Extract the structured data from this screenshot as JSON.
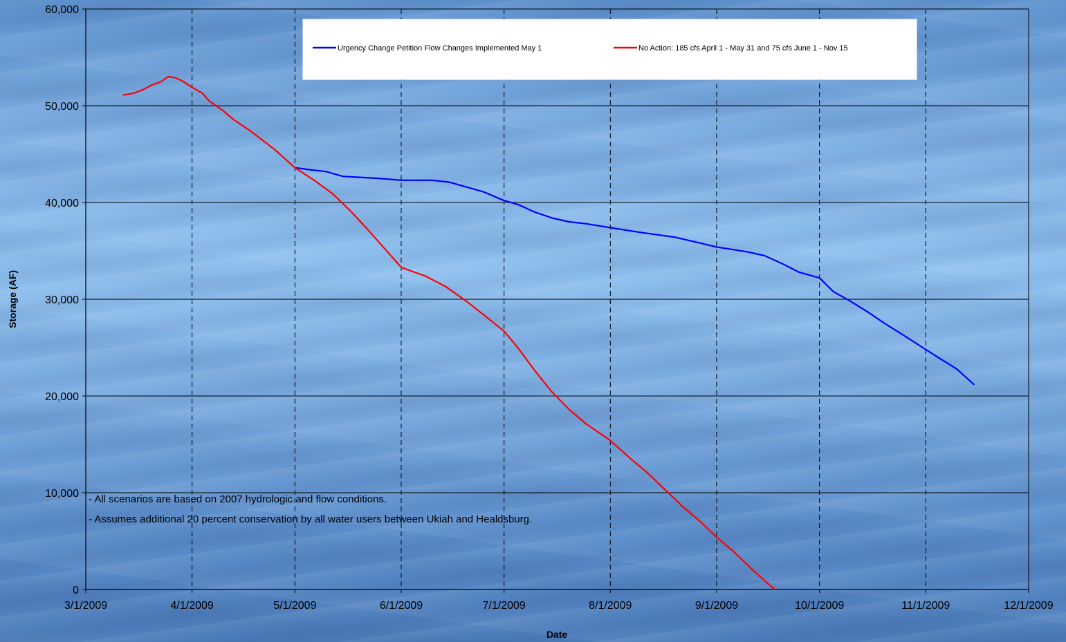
{
  "chart_data": {
    "type": "line",
    "title": "",
    "xlabel": "Date",
    "ylabel": "Storage (AF)",
    "xlim": [
      "2009-03-01",
      "2009-12-01"
    ],
    "ylim": [
      0,
      60000
    ],
    "x_ticks": [
      "3/1/2009",
      "4/1/2009",
      "5/1/2009",
      "6/1/2009",
      "7/1/2009",
      "8/1/2009",
      "9/1/2009",
      "10/1/2009",
      "11/1/2009",
      "12/1/2009"
    ],
    "y_ticks": [
      {
        "value": 0,
        "label": "0"
      },
      {
        "value": 10000,
        "label": "10,000"
      },
      {
        "value": 20000,
        "label": "20,000"
      },
      {
        "value": 30000,
        "label": "30,000"
      },
      {
        "value": 40000,
        "label": "40,000"
      },
      {
        "value": 50000,
        "label": "50,000"
      },
      {
        "value": 60000,
        "label": "60,000"
      }
    ],
    "grid": {
      "horizontal": "solid",
      "vertical": "dashed"
    },
    "legend_position": "top",
    "series": [
      {
        "name": "Urgency Change Petition Flow  Changes Implemented May 1",
        "color": "#0000ff",
        "points": [
          [
            "2009-05-01",
            43600
          ],
          [
            "2009-05-05",
            43400
          ],
          [
            "2009-05-10",
            43200
          ],
          [
            "2009-05-15",
            42700
          ],
          [
            "2009-05-20",
            42600
          ],
          [
            "2009-05-25",
            42500
          ],
          [
            "2009-06-01",
            42300
          ],
          [
            "2009-06-10",
            42300
          ],
          [
            "2009-06-15",
            42100
          ],
          [
            "2009-06-20",
            41600
          ],
          [
            "2009-06-25",
            41100
          ],
          [
            "2009-07-01",
            40200
          ],
          [
            "2009-07-05",
            39800
          ],
          [
            "2009-07-10",
            39000
          ],
          [
            "2009-07-15",
            38400
          ],
          [
            "2009-07-20",
            38000
          ],
          [
            "2009-07-25",
            37800
          ],
          [
            "2009-08-01",
            37400
          ],
          [
            "2009-08-10",
            36900
          ],
          [
            "2009-08-20",
            36400
          ],
          [
            "2009-09-01",
            35400
          ],
          [
            "2009-09-10",
            34900
          ],
          [
            "2009-09-15",
            34500
          ],
          [
            "2009-09-20",
            33700
          ],
          [
            "2009-09-25",
            32800
          ],
          [
            "2009-10-01",
            32200
          ],
          [
            "2009-10-05",
            30800
          ],
          [
            "2009-10-10",
            29800
          ],
          [
            "2009-10-15",
            28700
          ],
          [
            "2009-10-20",
            27500
          ],
          [
            "2009-10-25",
            26400
          ],
          [
            "2009-11-01",
            24800
          ],
          [
            "2009-11-05",
            23900
          ],
          [
            "2009-11-10",
            22800
          ],
          [
            "2009-11-15",
            21200
          ]
        ]
      },
      {
        "name": "No Action: 185 cfs April 1 - May 31 and 75 cfs June 1 - Nov 15",
        "color": "#ff0000",
        "points": [
          [
            "2009-03-12",
            51100
          ],
          [
            "2009-03-15",
            51300
          ],
          [
            "2009-03-18",
            51700
          ],
          [
            "2009-03-20",
            52100
          ],
          [
            "2009-03-23",
            52500
          ],
          [
            "2009-03-25",
            53000
          ],
          [
            "2009-03-27",
            52900
          ],
          [
            "2009-03-29",
            52600
          ],
          [
            "2009-04-01",
            51900
          ],
          [
            "2009-04-04",
            51300
          ],
          [
            "2009-04-06",
            50500
          ],
          [
            "2009-04-10",
            49500
          ],
          [
            "2009-04-13",
            48600
          ],
          [
            "2009-04-18",
            47400
          ],
          [
            "2009-04-25",
            45500
          ],
          [
            "2009-05-01",
            43600
          ],
          [
            "2009-05-07",
            42200
          ],
          [
            "2009-05-12",
            40900
          ],
          [
            "2009-05-17",
            39200
          ],
          [
            "2009-05-22",
            37300
          ],
          [
            "2009-05-27",
            35300
          ],
          [
            "2009-06-01",
            33300
          ],
          [
            "2009-06-04",
            32900
          ],
          [
            "2009-06-08",
            32400
          ],
          [
            "2009-06-14",
            31300
          ],
          [
            "2009-06-20",
            29800
          ],
          [
            "2009-06-25",
            28400
          ],
          [
            "2009-07-01",
            26700
          ],
          [
            "2009-07-05",
            25000
          ],
          [
            "2009-07-10",
            22600
          ],
          [
            "2009-07-15",
            20400
          ],
          [
            "2009-07-20",
            18600
          ],
          [
            "2009-07-25",
            17100
          ],
          [
            "2009-08-01",
            15400
          ],
          [
            "2009-08-06",
            13800
          ],
          [
            "2009-08-12",
            12000
          ],
          [
            "2009-08-17",
            10300
          ],
          [
            "2009-08-22",
            8600
          ],
          [
            "2009-08-27",
            7100
          ],
          [
            "2009-09-01",
            5400
          ],
          [
            "2009-09-06",
            3900
          ],
          [
            "2009-09-11",
            2200
          ],
          [
            "2009-09-15",
            900
          ],
          [
            "2009-09-18",
            0
          ]
        ]
      }
    ],
    "annotations": [
      "- All scenarios are based on 2007 hydrologic and flow conditions.",
      "- Assumes additional 20 percent conservation by all water users between Ukiah and Healdsburg."
    ]
  }
}
